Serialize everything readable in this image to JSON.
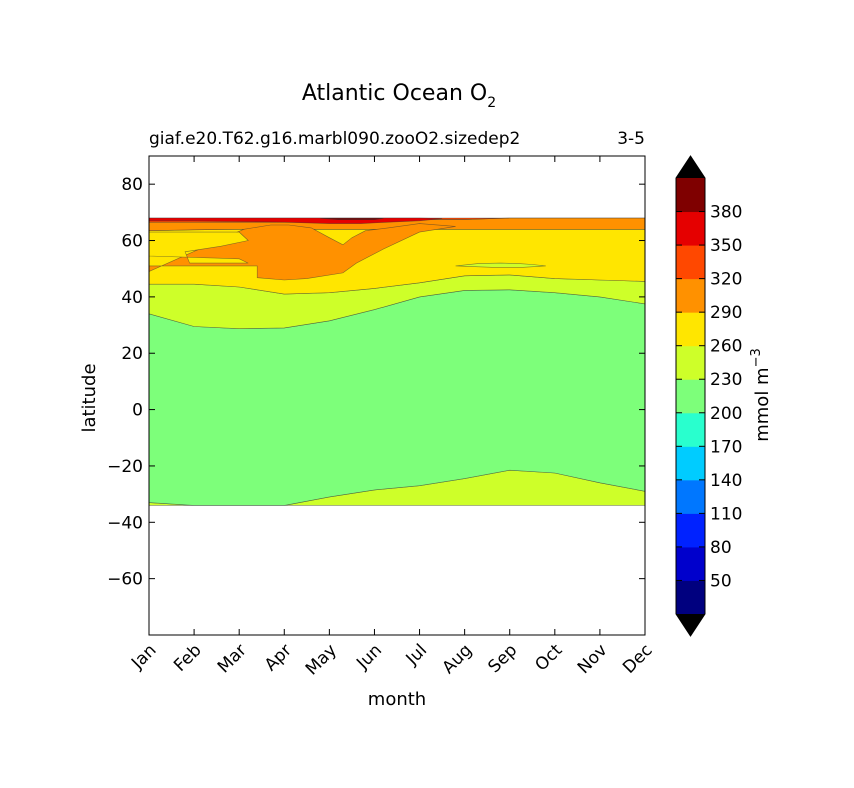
{
  "chart_data": {
    "type": "filled-contour",
    "title": "Atlantic Ocean O",
    "title_subscript": "2",
    "subtitle_left": "giaf.e20.T62.g16.marbl090.zooO2.sizedep2",
    "subtitle_right": "3-5",
    "xlabel": "month",
    "ylabel": "latitude",
    "x_categories": [
      "Jan",
      "Feb",
      "Mar",
      "Apr",
      "May",
      "Jun",
      "Jul",
      "Aug",
      "Sep",
      "Oct",
      "Nov",
      "Dec"
    ],
    "xlim": [
      0,
      11
    ],
    "ylim": [
      -80,
      90
    ],
    "y_ticks": [
      80,
      60,
      40,
      20,
      0,
      -20,
      -40,
      -60
    ],
    "y_tick_labels": [
      "80",
      "60",
      "40",
      "20",
      "0",
      "−20",
      "−40",
      "−60"
    ],
    "colorbar": {
      "label": "mmol m",
      "label_superscript": "−3",
      "levels": [
        20,
        50,
        80,
        110,
        140,
        170,
        200,
        230,
        260,
        290,
        320,
        350,
        380,
        410
      ],
      "tick_labels": [
        "50",
        "80",
        "110",
        "140",
        "170",
        "200",
        "230",
        "260",
        "290",
        "320",
        "350",
        "380"
      ],
      "colors": [
        "#00007f",
        "#0000cc",
        "#0022ff",
        "#0077ff",
        "#00ccff",
        "#29ffce",
        "#7dff7a",
        "#ceff29",
        "#ffe600",
        "#ff9100",
        "#ff4800",
        "#e50000",
        "#7f0000"
      ],
      "extend": "both",
      "under_color": "#000000",
      "over_color": "#000000"
    },
    "data_extent_lat": [
      -34,
      68
    ],
    "regions": [
      {
        "name": "band-230-260-south",
        "level_range": [
          230,
          260
        ],
        "boundary_months": [
          0,
          1,
          2,
          3,
          4,
          5,
          6,
          7,
          8,
          9,
          10,
          11
        ],
        "lower_lat": [
          -34,
          -34,
          -34,
          -34,
          -34,
          -34,
          -34,
          -34,
          -34,
          -34,
          -34,
          -34
        ],
        "upper_lat": [
          -33,
          -34,
          -34,
          -34,
          -31,
          -28.5,
          -27,
          -24.5,
          -21.5,
          -22.5,
          -26,
          -29
        ]
      },
      {
        "name": "band-200-230",
        "level_range": [
          200,
          230
        ],
        "boundary_months": [
          0,
          1,
          2,
          3,
          4,
          5,
          6,
          7,
          8,
          9,
          10,
          11
        ],
        "lower_lat": [
          -33,
          -34,
          -34,
          -34,
          -31,
          -28.5,
          -27,
          -24.5,
          -21.5,
          -22.5,
          -26,
          -29
        ],
        "upper_lat": [
          34,
          29.5,
          28.7,
          29,
          31.5,
          35.5,
          40,
          42.3,
          42.5,
          41.5,
          40,
          37.5
        ]
      },
      {
        "name": "band-230-260-north",
        "level_range": [
          230,
          260
        ],
        "boundary_months": [
          0,
          1,
          2,
          3,
          4,
          5,
          6,
          7,
          8,
          9,
          10,
          11
        ],
        "lower_lat": [
          34,
          29.5,
          28.7,
          29,
          31.5,
          35.5,
          40,
          42.3,
          42.5,
          41.5,
          40,
          37.5
        ],
        "upper_lat": [
          44.5,
          44.5,
          43.5,
          41,
          41.5,
          43,
          45,
          47.5,
          47.8,
          46.5,
          46,
          45.5
        ]
      },
      {
        "name": "band-260-290",
        "level_range": [
          260,
          290
        ],
        "boundary_months": [
          0,
          1,
          2,
          3,
          4,
          5,
          6,
          7,
          8,
          9,
          10,
          11
        ],
        "lower_lat": [
          44.5,
          44.5,
          43.5,
          41,
          41.5,
          43,
          45,
          47.5,
          47.8,
          46.5,
          46,
          45.5
        ],
        "upper_lat": [
          63.5,
          63.8,
          64,
          64,
          64,
          64,
          64,
          64,
          64,
          64,
          64,
          64
        ]
      },
      {
        "name": "band-290-320",
        "level_range": [
          290,
          320
        ],
        "boundary_months": [
          0,
          1,
          2,
          3,
          4,
          5,
          6,
          7,
          8,
          9,
          10,
          11
        ],
        "lower_lat": [
          63.5,
          63.8,
          64,
          64,
          64,
          64,
          64,
          64,
          64,
          64,
          64,
          64
        ],
        "upper_lat": [
          66.5,
          66.5,
          66.5,
          66.5,
          66.5,
          67,
          67.5,
          67.5,
          68,
          68,
          68,
          68
        ]
      },
      {
        "name": "band-320-350",
        "level_range": [
          320,
          350
        ],
        "boundary_months": [
          0,
          1,
          2,
          3,
          4,
          5,
          6,
          7,
          8,
          9,
          10,
          11
        ],
        "lower_lat": [
          66.5,
          66.5,
          66.5,
          66.5,
          66.5,
          67,
          67.5,
          67.5,
          68,
          68,
          68,
          68
        ],
        "upper_lat": [
          68,
          68,
          68,
          68,
          68,
          68,
          68,
          68,
          68,
          68,
          68,
          68
        ]
      },
      {
        "name": "orange-tongue-290-320",
        "level_range": [
          290,
          320
        ],
        "boundary_months": [
          2.1,
          2.7,
          3.1,
          3.6,
          4,
          4.3,
          4.5,
          4.8,
          5.3,
          6,
          6.8,
          6,
          5.2,
          4.6,
          4.3,
          3.5,
          3,
          2.4,
          2.4,
          1.6,
          1.2,
          0.7,
          0,
          0,
          2.1
        ],
        "lat": [
          64,
          65.5,
          65.5,
          64.5,
          61,
          58.5,
          61,
          63.5,
          64.5,
          66,
          65,
          63,
          57,
          52,
          48.5,
          46.5,
          46,
          46.8,
          51,
          51,
          51,
          51,
          51,
          49,
          64
        ]
      },
      {
        "name": "stripe-260-290-inside",
        "level_range": [
          260,
          290
        ],
        "boundary_months": [
          0,
          2,
          2.2,
          0.9,
          0.8,
          1.6,
          2.2,
          2,
          0,
          0
        ],
        "lat": [
          54.5,
          53.5,
          52,
          52,
          56,
          58,
          60,
          63,
          63,
          54.5
        ]
      },
      {
        "name": "band-350-380-top",
        "level_range": [
          350,
          380
        ],
        "boundary_months": [
          0,
          3,
          4,
          5.6,
          6,
          6.5,
          6,
          5.3,
          4.7,
          4,
          3,
          1,
          0,
          0
        ],
        "lat": [
          68,
          68,
          68,
          68,
          68,
          67.8,
          67,
          66.5,
          66,
          66,
          66.5,
          67,
          67,
          68
        ]
      },
      {
        "name": "max-380-410",
        "level_range": [
          380,
          410
        ],
        "boundary_months": [
          3.8,
          4.2,
          4.6,
          5,
          5.2,
          3.8
        ],
        "lat": [
          67.9,
          67.4,
          67.4,
          67.4,
          67.9,
          67.9
        ]
      },
      {
        "name": "green-patch-230-260",
        "level_range": [
          230,
          260
        ],
        "boundary_months": [
          6.8,
          7.3,
          7.8,
          8.2,
          8.5,
          8.8,
          8.3,
          7.6,
          6.8
        ],
        "lat": [
          51,
          51.8,
          52,
          51.8,
          51.5,
          51,
          50.5,
          50.5,
          51
        ]
      }
    ]
  }
}
